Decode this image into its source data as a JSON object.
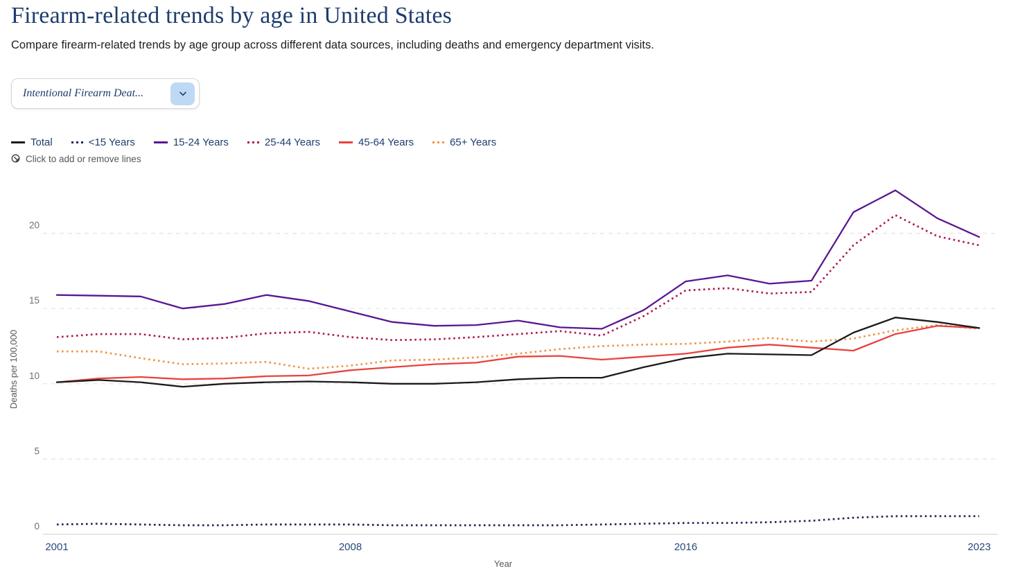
{
  "page": {
    "title": "Firearm-related trends by age in United States",
    "subtitle": "Compare firearm-related trends by age group across different data sources, including deaths and emergency department visits."
  },
  "controls": {
    "dataset_dropdown": {
      "value": "Intentional Firearm Deat...",
      "chevron_icon": "chevron-down",
      "button_bg": "#bed9f4"
    },
    "legend_hint": "Click to add or remove lines",
    "legend_hint_icon": "click-cursor"
  },
  "colors": {
    "title_navy": "#1e3c6e",
    "axis_tick_navy": "#29497b",
    "gridline": "#e3e3e3",
    "axis_line": "#dedede",
    "muted_text": "#6f6f6f"
  },
  "chart_data": {
    "type": "line",
    "title": "",
    "xlabel": "Year",
    "ylabel": "Deaths per 100,000",
    "x": [
      2001,
      2002,
      2003,
      2004,
      2005,
      2006,
      2007,
      2008,
      2009,
      2010,
      2011,
      2012,
      2013,
      2014,
      2015,
      2016,
      2017,
      2018,
      2019,
      2020,
      2021,
      2022,
      2023
    ],
    "xticks": [
      2001,
      2008,
      2016,
      2023
    ],
    "yticks": [
      0,
      5,
      10,
      15,
      20
    ],
    "ylim": [
      0,
      23.5
    ],
    "grid": "horizontal-dashed",
    "legend_position": "top-left",
    "series": [
      {
        "name": "Total",
        "style": "solid",
        "color": "#1a1a1a",
        "values": [
          10.1,
          10.25,
          10.1,
          9.8,
          10.0,
          10.1,
          10.15,
          10.1,
          10.0,
          10.0,
          10.1,
          10.3,
          10.4,
          10.4,
          11.1,
          11.7,
          12.0,
          11.95,
          11.9,
          13.4,
          14.4,
          14.1,
          13.7
        ]
      },
      {
        "name": "<15 Years",
        "style": "dotted",
        "color": "#232355",
        "values": [
          0.65,
          0.7,
          0.65,
          0.6,
          0.6,
          0.65,
          0.65,
          0.65,
          0.6,
          0.6,
          0.6,
          0.6,
          0.6,
          0.65,
          0.7,
          0.75,
          0.75,
          0.8,
          0.9,
          1.1,
          1.2,
          1.2,
          1.2
        ]
      },
      {
        "name": "15-24 Years",
        "style": "solid",
        "color": "#5a1691",
        "values": [
          15.9,
          15.85,
          15.8,
          15.0,
          15.3,
          15.9,
          15.5,
          14.8,
          14.1,
          13.85,
          13.9,
          14.2,
          13.75,
          13.65,
          14.9,
          16.8,
          17.2,
          16.65,
          16.85,
          21.4,
          22.85,
          21.0,
          19.75
        ]
      },
      {
        "name": "25-44 Years",
        "style": "dotted",
        "color": "#ae1857",
        "values": [
          13.1,
          13.3,
          13.3,
          12.95,
          13.05,
          13.35,
          13.45,
          13.1,
          12.9,
          12.95,
          13.1,
          13.3,
          13.5,
          13.2,
          14.5,
          16.2,
          16.35,
          16.0,
          16.1,
          19.2,
          21.2,
          19.8,
          19.2
        ]
      },
      {
        "name": "45-64 Years",
        "style": "solid",
        "color": "#e9423f",
        "values": [
          10.1,
          10.35,
          10.45,
          10.3,
          10.35,
          10.5,
          10.55,
          10.9,
          11.1,
          11.3,
          11.4,
          11.8,
          11.85,
          11.6,
          11.8,
          12.0,
          12.4,
          12.6,
          12.4,
          12.2,
          13.3,
          13.85,
          13.7
        ]
      },
      {
        "name": "65+ Years",
        "style": "dotted",
        "color": "#f29345",
        "values": [
          12.15,
          12.15,
          11.7,
          11.3,
          11.35,
          11.45,
          11.0,
          11.2,
          11.55,
          11.6,
          11.75,
          12.0,
          12.3,
          12.5,
          12.6,
          12.65,
          12.8,
          13.05,
          12.8,
          13.0,
          13.55,
          13.9,
          13.65
        ]
      }
    ]
  }
}
